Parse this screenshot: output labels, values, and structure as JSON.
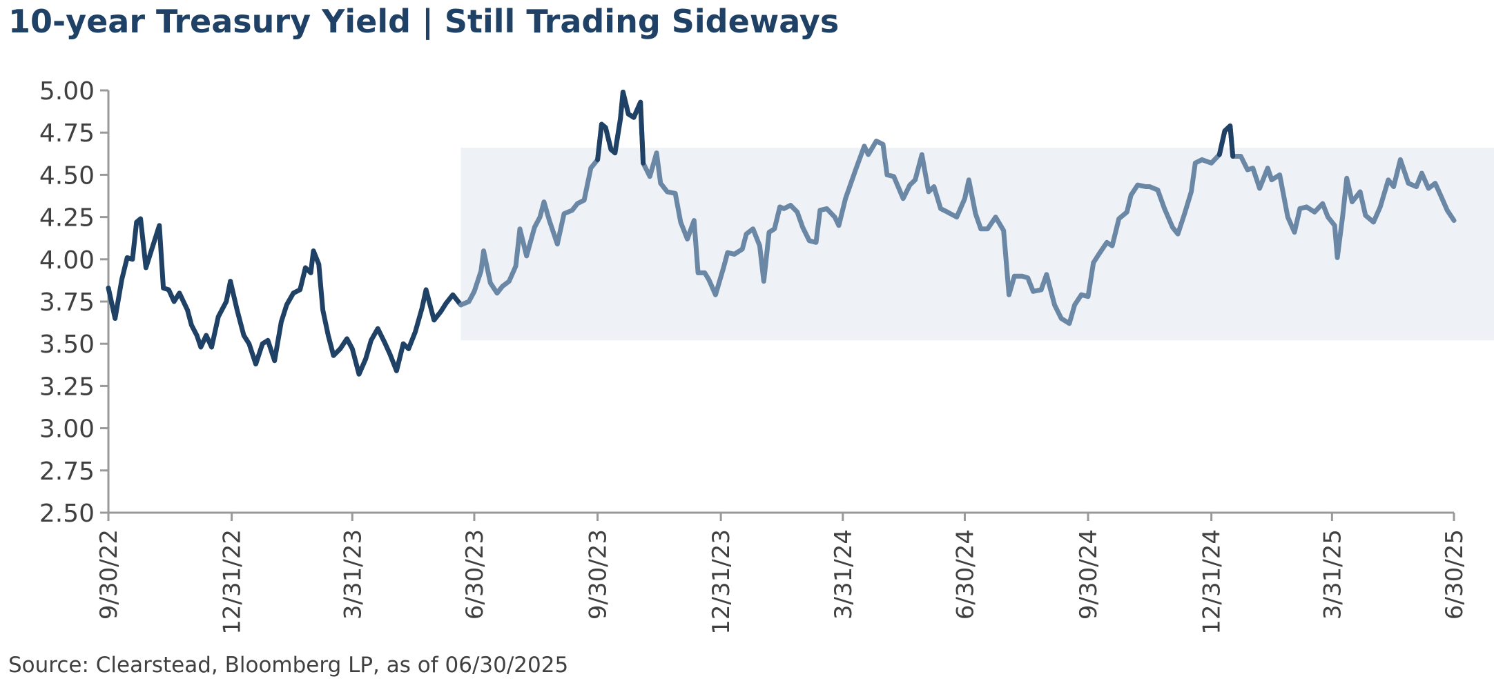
{
  "colors": {
    "title": "#1f4166",
    "series_dark": "#1f4166",
    "series_light": "#6a88a6",
    "range_band": "#eef1f5",
    "axis": "#999999"
  },
  "chart_data": {
    "type": "line",
    "title": "10-year Treasury Yield | Still Trading Sideways",
    "source": "Source: Clearstead, Bloomberg LP, as of 06/30/2025",
    "xlabel": "",
    "ylabel": "",
    "ylim": [
      2.5,
      5.0
    ],
    "y_ticks": [
      "5.00",
      "4.75",
      "4.50",
      "4.25",
      "4.00",
      "3.75",
      "3.50",
      "3.25",
      "3.00",
      "2.75",
      "2.50"
    ],
    "x_ticks": [
      "9/30/22",
      "12/31/22",
      "3/31/23",
      "6/30/23",
      "9/30/23",
      "12/31/23",
      "3/31/24",
      "6/30/24",
      "9/30/24",
      "12/31/24",
      "3/31/25",
      "6/30/25"
    ],
    "grid": false,
    "trading_range": {
      "x_start": "2023-06-20",
      "x_end": "2025-06-30",
      "y_low": 3.52,
      "y_high": 4.66
    },
    "series": [
      {
        "color": "dark",
        "points": [
          [
            "2022-09-30",
            3.83
          ],
          [
            "2022-10-05",
            3.65
          ],
          [
            "2022-10-10",
            3.88
          ],
          [
            "2022-10-14",
            4.01
          ],
          [
            "2022-10-18",
            4.0
          ],
          [
            "2022-10-21",
            4.22
          ],
          [
            "2022-10-24",
            4.24
          ],
          [
            "2022-10-28",
            3.95
          ],
          [
            "2022-11-01",
            4.05
          ],
          [
            "2022-11-07",
            4.2
          ],
          [
            "2022-11-10",
            3.83
          ],
          [
            "2022-11-14",
            3.82
          ],
          [
            "2022-11-18",
            3.75
          ],
          [
            "2022-11-22",
            3.8
          ],
          [
            "2022-11-28",
            3.7
          ],
          [
            "2022-12-01",
            3.61
          ],
          [
            "2022-12-05",
            3.55
          ],
          [
            "2022-12-08",
            3.48
          ],
          [
            "2022-12-12",
            3.55
          ],
          [
            "2022-12-16",
            3.48
          ],
          [
            "2022-12-21",
            3.66
          ],
          [
            "2022-12-27",
            3.75
          ],
          [
            "2022-12-30",
            3.87
          ],
          [
            "2023-01-04",
            3.7
          ],
          [
            "2023-01-09",
            3.55
          ],
          [
            "2023-01-13",
            3.5
          ],
          [
            "2023-01-18",
            3.38
          ],
          [
            "2023-01-23",
            3.5
          ],
          [
            "2023-01-27",
            3.52
          ],
          [
            "2023-02-01",
            3.4
          ],
          [
            "2023-02-06",
            3.63
          ],
          [
            "2023-02-10",
            3.73
          ],
          [
            "2023-02-15",
            3.8
          ],
          [
            "2023-02-20",
            3.82
          ],
          [
            "2023-02-24",
            3.95
          ],
          [
            "2023-02-28",
            3.92
          ],
          [
            "2023-03-02",
            4.05
          ],
          [
            "2023-03-06",
            3.97
          ],
          [
            "2023-03-09",
            3.7
          ],
          [
            "2023-03-13",
            3.55
          ],
          [
            "2023-03-17",
            3.43
          ],
          [
            "2023-03-22",
            3.47
          ],
          [
            "2023-03-27",
            3.53
          ],
          [
            "2023-03-31",
            3.47
          ],
          [
            "2023-04-05",
            3.32
          ],
          [
            "2023-04-10",
            3.41
          ],
          [
            "2023-04-14",
            3.52
          ],
          [
            "2023-04-19",
            3.59
          ],
          [
            "2023-04-24",
            3.51
          ],
          [
            "2023-04-28",
            3.44
          ],
          [
            "2023-05-03",
            3.34
          ],
          [
            "2023-05-08",
            3.5
          ],
          [
            "2023-05-12",
            3.47
          ],
          [
            "2023-05-17",
            3.57
          ],
          [
            "2023-05-22",
            3.71
          ],
          [
            "2023-05-25",
            3.82
          ],
          [
            "2023-05-31",
            3.64
          ],
          [
            "2023-06-05",
            3.69
          ],
          [
            "2023-06-09",
            3.74
          ],
          [
            "2023-06-14",
            3.79
          ],
          [
            "2023-06-20",
            3.73
          ]
        ]
      },
      {
        "color": "light",
        "points": [
          [
            "2023-06-20",
            3.73
          ],
          [
            "2023-06-26",
            3.75
          ],
          [
            "2023-06-30",
            3.81
          ],
          [
            "2023-07-05",
            3.93
          ],
          [
            "2023-07-07",
            4.05
          ],
          [
            "2023-07-12",
            3.86
          ],
          [
            "2023-07-17",
            3.8
          ],
          [
            "2023-07-21",
            3.84
          ],
          [
            "2023-07-26",
            3.87
          ],
          [
            "2023-07-31",
            3.96
          ],
          [
            "2023-08-03",
            4.18
          ],
          [
            "2023-08-08",
            4.02
          ],
          [
            "2023-08-14",
            4.19
          ],
          [
            "2023-08-18",
            4.25
          ],
          [
            "2023-08-21",
            4.34
          ],
          [
            "2023-08-25",
            4.23
          ],
          [
            "2023-08-31",
            4.09
          ],
          [
            "2023-09-05",
            4.27
          ],
          [
            "2023-09-11",
            4.29
          ],
          [
            "2023-09-15",
            4.33
          ],
          [
            "2023-09-20",
            4.35
          ],
          [
            "2023-09-25",
            4.54
          ],
          [
            "2023-09-30",
            4.59
          ],
          [
            "2023-10-03",
            4.8
          ],
          [
            "2023-10-06",
            4.78
          ],
          [
            "2023-10-10",
            4.65
          ],
          [
            "2023-10-13",
            4.63
          ],
          [
            "2023-10-17",
            4.83
          ],
          [
            "2023-10-19",
            4.99
          ],
          [
            "2023-10-23",
            4.86
          ],
          [
            "2023-10-27",
            4.84
          ],
          [
            "2023-11-01",
            4.93
          ],
          [
            "2023-11-03",
            4.57
          ],
          [
            "2023-11-08",
            4.49
          ],
          [
            "2023-11-13",
            4.63
          ],
          [
            "2023-11-16",
            4.45
          ],
          [
            "2023-11-21",
            4.4
          ],
          [
            "2023-11-27",
            4.39
          ],
          [
            "2023-12-01",
            4.22
          ],
          [
            "2023-12-06",
            4.12
          ],
          [
            "2023-12-11",
            4.23
          ],
          [
            "2023-12-14",
            3.92
          ],
          [
            "2023-12-19",
            3.92
          ],
          [
            "2023-12-22",
            3.88
          ],
          [
            "2023-12-27",
            3.79
          ],
          [
            "2024-01-02",
            3.95
          ],
          [
            "2024-01-05",
            4.04
          ],
          [
            "2024-01-10",
            4.03
          ],
          [
            "2024-01-16",
            4.06
          ],
          [
            "2024-01-19",
            4.15
          ],
          [
            "2024-01-24",
            4.18
          ],
          [
            "2024-01-29",
            4.08
          ],
          [
            "2024-02-01",
            3.87
          ],
          [
            "2024-02-05",
            4.16
          ],
          [
            "2024-02-09",
            4.18
          ],
          [
            "2024-02-13",
            4.31
          ],
          [
            "2024-02-16",
            4.3
          ],
          [
            "2024-02-21",
            4.32
          ],
          [
            "2024-02-26",
            4.28
          ],
          [
            "2024-03-01",
            4.19
          ],
          [
            "2024-03-06",
            4.11
          ],
          [
            "2024-03-11",
            4.1
          ],
          [
            "2024-03-14",
            4.29
          ],
          [
            "2024-03-19",
            4.3
          ],
          [
            "2024-03-25",
            4.25
          ],
          [
            "2024-03-28",
            4.2
          ],
          [
            "2024-04-02",
            4.36
          ],
          [
            "2024-04-10",
            4.54
          ],
          [
            "2024-04-16",
            4.67
          ],
          [
            "2024-04-19",
            4.62
          ],
          [
            "2024-04-25",
            4.7
          ],
          [
            "2024-04-30",
            4.68
          ],
          [
            "2024-05-03",
            4.5
          ],
          [
            "2024-05-08",
            4.49
          ],
          [
            "2024-05-15",
            4.36
          ],
          [
            "2024-05-20",
            4.44
          ],
          [
            "2024-05-24",
            4.47
          ],
          [
            "2024-05-29",
            4.62
          ],
          [
            "2024-06-03",
            4.4
          ],
          [
            "2024-06-07",
            4.43
          ],
          [
            "2024-06-12",
            4.3
          ],
          [
            "2024-06-17",
            4.28
          ],
          [
            "2024-06-24",
            4.25
          ],
          [
            "2024-06-30",
            4.36
          ],
          [
            "2024-07-03",
            4.47
          ],
          [
            "2024-07-08",
            4.27
          ],
          [
            "2024-07-12",
            4.18
          ],
          [
            "2024-07-17",
            4.18
          ],
          [
            "2024-07-23",
            4.25
          ],
          [
            "2024-07-29",
            4.17
          ],
          [
            "2024-08-02",
            3.79
          ],
          [
            "2024-08-06",
            3.9
          ],
          [
            "2024-08-12",
            3.9
          ],
          [
            "2024-08-16",
            3.89
          ],
          [
            "2024-08-20",
            3.81
          ],
          [
            "2024-08-26",
            3.82
          ],
          [
            "2024-08-30",
            3.91
          ],
          [
            "2024-09-05",
            3.73
          ],
          [
            "2024-09-10",
            3.65
          ],
          [
            "2024-09-16",
            3.62
          ],
          [
            "2024-09-20",
            3.73
          ],
          [
            "2024-09-25",
            3.79
          ],
          [
            "2024-09-30",
            3.78
          ],
          [
            "2024-10-04",
            3.98
          ],
          [
            "2024-10-08",
            4.03
          ],
          [
            "2024-10-14",
            4.1
          ],
          [
            "2024-10-18",
            4.08
          ],
          [
            "2024-10-23",
            4.24
          ],
          [
            "2024-10-29",
            4.28
          ],
          [
            "2024-11-01",
            4.38
          ],
          [
            "2024-11-06",
            4.44
          ],
          [
            "2024-11-12",
            4.43
          ],
          [
            "2024-11-15",
            4.43
          ],
          [
            "2024-11-21",
            4.41
          ],
          [
            "2024-11-26",
            4.3
          ],
          [
            "2024-12-02",
            4.19
          ],
          [
            "2024-12-06",
            4.15
          ],
          [
            "2024-12-11",
            4.27
          ],
          [
            "2024-12-16",
            4.4
          ],
          [
            "2024-12-19",
            4.57
          ],
          [
            "2024-12-24",
            4.59
          ],
          [
            "2024-12-31",
            4.57
          ],
          [
            "2025-01-06",
            4.62
          ],
          [
            "2025-01-10",
            4.76
          ],
          [
            "2025-01-14",
            4.79
          ],
          [
            "2025-01-16",
            4.61
          ],
          [
            "2025-01-22",
            4.61
          ],
          [
            "2025-01-27",
            4.53
          ],
          [
            "2025-01-31",
            4.54
          ],
          [
            "2025-02-05",
            4.42
          ],
          [
            "2025-02-11",
            4.54
          ],
          [
            "2025-02-14",
            4.47
          ],
          [
            "2025-02-20",
            4.5
          ],
          [
            "2025-02-26",
            4.25
          ],
          [
            "2025-03-03",
            4.16
          ],
          [
            "2025-03-07",
            4.3
          ],
          [
            "2025-03-12",
            4.31
          ],
          [
            "2025-03-18",
            4.28
          ],
          [
            "2025-03-24",
            4.33
          ],
          [
            "2025-03-28",
            4.25
          ],
          [
            "2025-04-02",
            4.2
          ],
          [
            "2025-04-04",
            4.01
          ],
          [
            "2025-04-08",
            4.26
          ],
          [
            "2025-04-11",
            4.48
          ],
          [
            "2025-04-15",
            4.34
          ],
          [
            "2025-04-21",
            4.4
          ],
          [
            "2025-04-25",
            4.26
          ],
          [
            "2025-05-01",
            4.22
          ],
          [
            "2025-05-06",
            4.31
          ],
          [
            "2025-05-12",
            4.47
          ],
          [
            "2025-05-16",
            4.43
          ],
          [
            "2025-05-21",
            4.59
          ],
          [
            "2025-05-27",
            4.45
          ],
          [
            "2025-06-02",
            4.43
          ],
          [
            "2025-06-06",
            4.51
          ],
          [
            "2025-06-11",
            4.42
          ],
          [
            "2025-06-16",
            4.45
          ],
          [
            "2025-06-20",
            4.38
          ],
          [
            "2025-06-25",
            4.29
          ],
          [
            "2025-06-30",
            4.23
          ]
        ]
      },
      {
        "color": "dark",
        "points": [
          [
            "2023-09-30",
            4.59
          ],
          [
            "2023-10-03",
            4.8
          ],
          [
            "2023-10-06",
            4.78
          ],
          [
            "2023-10-10",
            4.65
          ],
          [
            "2023-10-13",
            4.63
          ],
          [
            "2023-10-17",
            4.83
          ],
          [
            "2023-10-19",
            4.99
          ],
          [
            "2023-10-23",
            4.86
          ],
          [
            "2023-10-27",
            4.84
          ],
          [
            "2023-11-01",
            4.93
          ],
          [
            "2023-11-03",
            4.57
          ]
        ]
      },
      {
        "color": "dark",
        "points": [
          [
            "2025-01-06",
            4.62
          ],
          [
            "2025-01-10",
            4.76
          ],
          [
            "2025-01-14",
            4.79
          ],
          [
            "2025-01-16",
            4.61
          ]
        ]
      }
    ]
  }
}
